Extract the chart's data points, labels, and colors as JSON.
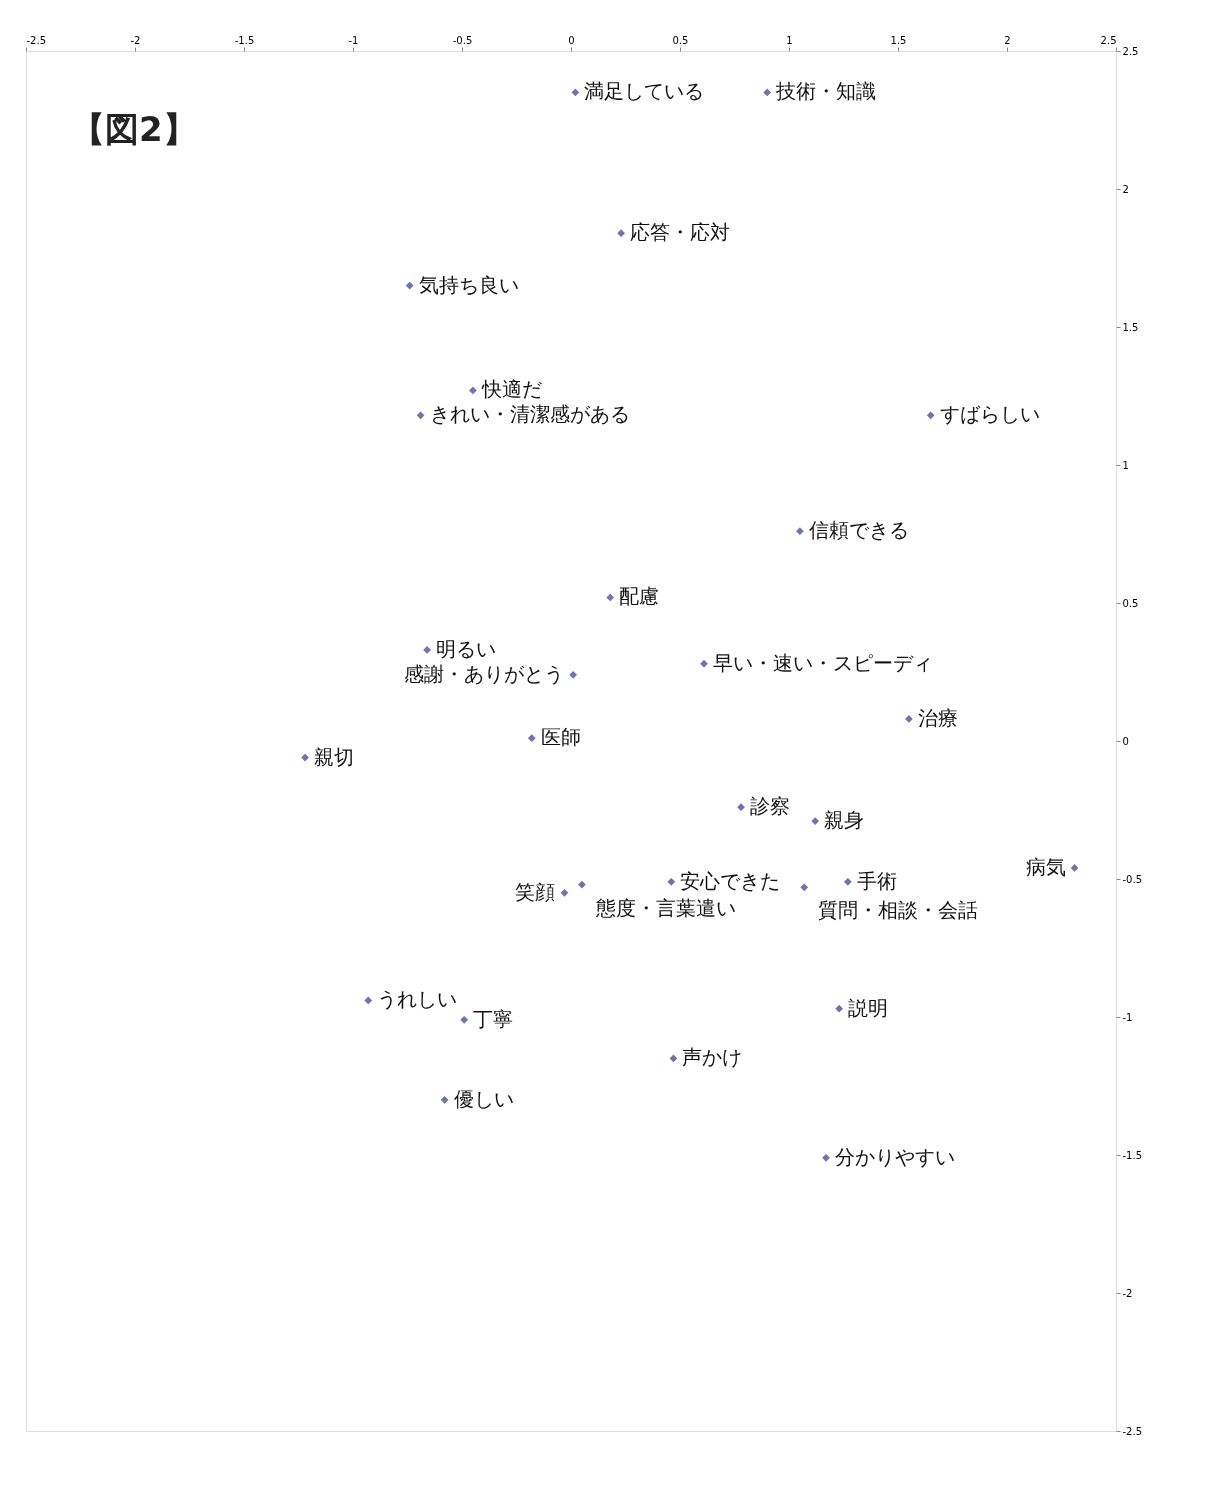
{
  "chart_data": {
    "type": "scatter",
    "title": "【図2】",
    "series": [
      {
        "color": "#2e3a8a",
        "x": [
          0.02,
          0.9,
          0.23,
          -0.74,
          -0.45,
          -0.69,
          1.65,
          1.05,
          0.18,
          -0.66,
          0.61,
          0.01,
          -0.18,
          1.55,
          -1.22,
          0.78,
          1.12,
          2.31,
          0.05,
          -0.03,
          0.46,
          1.07,
          1.27,
          1.23,
          -0.93,
          -0.49,
          0.47,
          -0.58,
          1.17
        ],
        "values": [
          2.35,
          2.35,
          1.84,
          1.65,
          1.27,
          1.18,
          1.18,
          0.76,
          0.52,
          0.33,
          0.28,
          0.24,
          0.01,
          0.08,
          -0.06,
          -0.24,
          -0.29,
          -0.46,
          -0.52,
          -0.55,
          -0.51,
          -0.53,
          -0.51,
          -0.97,
          -0.94,
          -1.01,
          -1.15,
          -1.3,
          -1.51
        ]
      }
    ],
    "annotations": [
      {
        "text": "満足している",
        "x": 0.02,
        "y": 2.35
      },
      {
        "text": "技術・知識",
        "x": 0.9,
        "y": 2.35
      },
      {
        "text": "応答・応対",
        "x": 0.23,
        "y": 1.84
      },
      {
        "text": "気持ち良い",
        "x": -0.74,
        "y": 1.65
      },
      {
        "text": "快適だ",
        "x": -0.45,
        "y": 1.27
      },
      {
        "text": "きれい・清潔感がある",
        "x": -0.69,
        "y": 1.18
      },
      {
        "text": "すばらしい",
        "x": 1.65,
        "y": 1.18
      },
      {
        "text": "信頼できる",
        "x": 1.05,
        "y": 0.76
      },
      {
        "text": "配慮",
        "x": 0.18,
        "y": 0.52
      },
      {
        "text": "明るい",
        "x": -0.66,
        "y": 0.33
      },
      {
        "text": "早い・速い・スピーディ",
        "x": 0.61,
        "y": 0.28
      },
      {
        "text": "感謝・ありがとう",
        "x": 0.01,
        "y": 0.24
      },
      {
        "text": "医師",
        "x": -0.18,
        "y": 0.01
      },
      {
        "text": "治療",
        "x": 1.55,
        "y": 0.08
      },
      {
        "text": "親切",
        "x": -1.22,
        "y": -0.06
      },
      {
        "text": "診察",
        "x": 0.78,
        "y": -0.24
      },
      {
        "text": "親身",
        "x": 1.12,
        "y": -0.29
      },
      {
        "text": "病気",
        "x": 2.31,
        "y": -0.46
      },
      {
        "text": "態度・言葉遣い",
        "x": 0.05,
        "y": -0.52
      },
      {
        "text": "笑顔",
        "x": -0.03,
        "y": -0.55
      },
      {
        "text": "安心できた",
        "x": 0.46,
        "y": -0.51
      },
      {
        "text": "質問・相談・会話",
        "x": 1.07,
        "y": -0.53
      },
      {
        "text": "手術",
        "x": 1.27,
        "y": -0.51
      },
      {
        "text": "説明",
        "x": 1.23,
        "y": -0.97
      },
      {
        "text": "うれしい",
        "x": -0.93,
        "y": -0.94
      },
      {
        "text": "丁寧",
        "x": -0.49,
        "y": -1.01
      },
      {
        "text": "声かけ",
        "x": 0.47,
        "y": -1.15
      },
      {
        "text": "優しい",
        "x": -0.58,
        "y": -1.3
      },
      {
        "text": "分かりやすい",
        "x": 1.17,
        "y": -1.51
      }
    ],
    "xlim": [
      -2.5,
      2.5
    ],
    "ylim": [
      -2.5,
      2.5
    ],
    "xticks": [
      -2.5,
      -2,
      -1.5,
      -1,
      -0.5,
      0,
      0.5,
      1,
      1.5,
      2,
      2.5
    ],
    "yticks": [
      -2.5,
      -2,
      -1.5,
      -1,
      -0.5,
      0,
      0.5,
      1,
      1.5,
      2,
      2.5
    ],
    "marker": "diamond",
    "grid": false
  }
}
